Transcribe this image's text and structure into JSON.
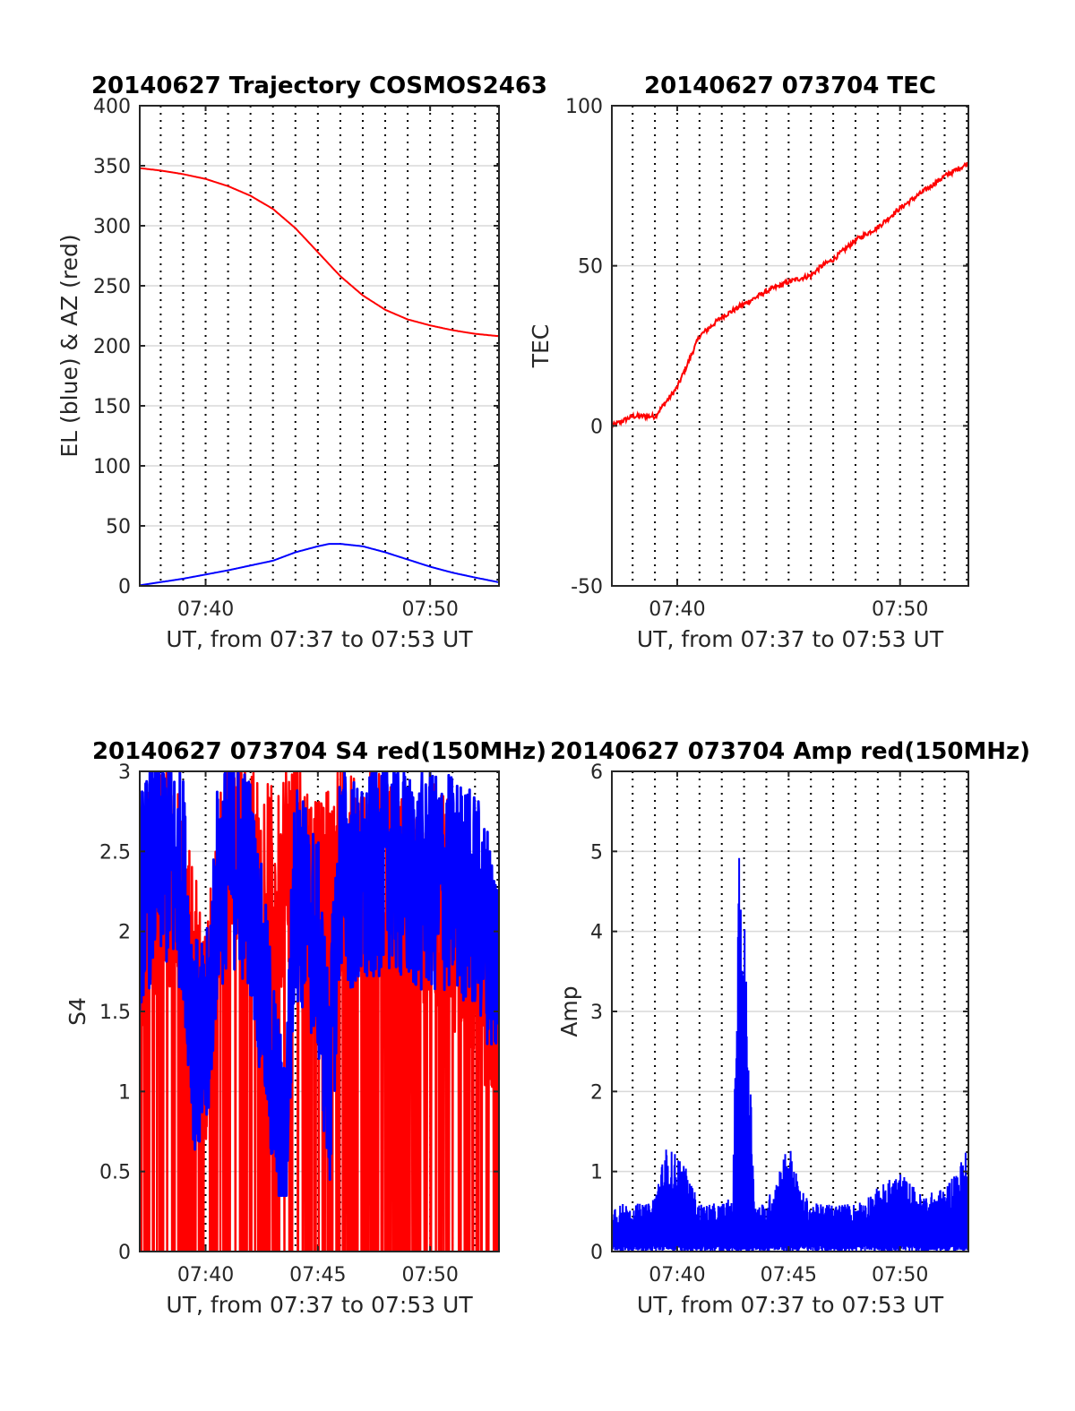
{
  "figure": {
    "background": "#ffffff",
    "colors": {
      "blue": "#0000ff",
      "red": "#ff0000",
      "grid": "#d9d9d9",
      "axis": "#262626"
    }
  },
  "chart_data": [
    {
      "type": "line",
      "title": "20140627 Trajectory COSMOS2463",
      "xlabel": "UT, from 07:37 to 07:53 UT",
      "ylabel": "EL (blue) & AZ (red)",
      "xlim": [
        "07:37:04",
        "07:53:04"
      ],
      "ylim": [
        0,
        400
      ],
      "xticks": [
        "07:40",
        "07:50"
      ],
      "yticks": [
        "0",
        "50",
        "100",
        "150",
        "200",
        "250",
        "300",
        "350",
        "400"
      ],
      "y_grid": true,
      "x_dotted_grid": "every minute",
      "series": [
        {
          "color": "#0000ff",
          "x": [
            "07:37:04",
            "07:39",
            "07:41",
            "07:43",
            "07:44",
            "07:45",
            "07:45:30",
            "07:46",
            "07:47",
            "07:48",
            "07:49",
            "07:50",
            "07:51",
            "07:52",
            "07:53:04"
          ],
          "values": [
            0.5,
            6,
            13,
            21,
            28,
            33,
            35,
            35,
            33,
            28,
            22,
            16,
            11,
            7,
            3
          ]
        },
        {
          "color": "#ff0000",
          "x": [
            "07:37:04",
            "07:38",
            "07:39",
            "07:40",
            "07:41",
            "07:42",
            "07:43",
            "07:44",
            "07:45",
            "07:46",
            "07:47",
            "07:48",
            "07:49",
            "07:50",
            "07:51",
            "07:52",
            "07:53:04"
          ],
          "values": [
            348,
            346,
            343,
            339,
            333,
            325,
            314,
            298,
            278,
            258,
            242,
            230,
            222,
            217,
            213,
            210,
            208
          ]
        }
      ]
    },
    {
      "type": "line",
      "title": "20140627 073704 TEC",
      "xlabel": "UT, from 07:37 to 07:53 UT",
      "ylabel": "TEC",
      "xlim": [
        "07:37:04",
        "07:53:04"
      ],
      "ylim": [
        -50,
        100
      ],
      "xticks": [
        "07:40",
        "07:50"
      ],
      "yticks": [
        "-50",
        "0",
        "50",
        "100"
      ],
      "y_grid": true,
      "x_dotted_grid": "every minute",
      "series": [
        {
          "color": "#ff0000",
          "x": [
            "07:37:04",
            "07:38",
            "07:39",
            "07:40",
            "07:40:30",
            "07:41",
            "07:42",
            "07:43",
            "07:44",
            "07:45",
            "07:46",
            "07:46:30",
            "07:47",
            "07:48",
            "07:49",
            "07:50",
            "07:51",
            "07:52",
            "07:53:04"
          ],
          "values": [
            0,
            3,
            3,
            12,
            20,
            28,
            34,
            38,
            42,
            45,
            47,
            50,
            52,
            58,
            62,
            68,
            73,
            78,
            82
          ]
        }
      ]
    },
    {
      "type": "line",
      "title": "20140627 073704 S4 red(150MHz)",
      "xlabel": "UT, from 07:37 to 07:53 UT",
      "ylabel": "S4",
      "xlim": [
        "07:37:04",
        "07:53:04"
      ],
      "ylim": [
        0,
        3
      ],
      "xticks": [
        "07:40",
        "07:45",
        "07:50"
      ],
      "yticks": [
        "0",
        "0.5",
        "1",
        "1.5",
        "2",
        "2.5",
        "3"
      ],
      "y_grid": true,
      "x_dotted_grid": "every minute",
      "series": [
        {
          "color": "#ff0000",
          "pattern": "dense noise, frequent dropouts to 0",
          "x": [
            "07:37:04",
            "07:38",
            "07:39",
            "07:40",
            "07:41",
            "07:42",
            "07:43",
            "07:44",
            "07:45",
            "07:46",
            "07:47",
            "07:48",
            "07:49",
            "07:50",
            "07:51",
            "07:52",
            "07:53:04"
          ],
          "values": [
            2.0,
            2.4,
            2.2,
            1.3,
            2.7,
            2.4,
            2.2,
            2.6,
            2.1,
            2.4,
            2.3,
            2.5,
            2.0,
            2.3,
            2.1,
            1.8,
            1.6
          ]
        },
        {
          "color": "#0000ff",
          "pattern": "dense noise",
          "x": [
            "07:37:04",
            "07:38",
            "07:39",
            "07:39:30",
            "07:40",
            "07:40:30",
            "07:41",
            "07:42",
            "07:43",
            "07:43:30",
            "07:44",
            "07:45",
            "07:45:30",
            "07:46",
            "07:47",
            "07:48",
            "07:49",
            "07:50",
            "07:51",
            "07:52",
            "07:53:04"
          ],
          "values": [
            2.2,
            2.5,
            2.3,
            1.3,
            1.2,
            2.2,
            2.5,
            2.3,
            1.1,
            0.5,
            2.3,
            1.9,
            1.0,
            2.4,
            2.2,
            2.5,
            2.3,
            2.3,
            2.3,
            2.2,
            1.8
          ]
        }
      ]
    },
    {
      "type": "line",
      "title": "20140627 073704 Amp red(150MHz)",
      "xlabel": "UT, from 07:37 to 07:53 UT",
      "ylabel": "Amp",
      "xlim": [
        "07:37:04",
        "07:53:04"
      ],
      "ylim": [
        0,
        6
      ],
      "xticks": [
        "07:40",
        "07:45",
        "07:50"
      ],
      "yticks": [
        "0",
        "1",
        "2",
        "3",
        "4",
        "5",
        "6"
      ],
      "y_grid": true,
      "x_dotted_grid": "every minute",
      "series": [
        {
          "color": "#0000ff",
          "pattern": "dense noise",
          "x": [
            "07:37:04",
            "07:38",
            "07:38:50",
            "07:39:30",
            "07:40:10",
            "07:41",
            "07:42",
            "07:42:30",
            "07:42:45",
            "07:43",
            "07:43:30",
            "07:44",
            "07:45",
            "07:45:30",
            "07:46",
            "07:47",
            "07:48",
            "07:49",
            "07:50",
            "07:51",
            "07:52",
            "07:53:04"
          ],
          "values": [
            0.6,
            0.6,
            0.6,
            1.3,
            1.2,
            0.6,
            0.6,
            0.7,
            5.0,
            4.3,
            0.6,
            0.6,
            1.4,
            0.8,
            0.6,
            0.6,
            0.6,
            0.8,
            1.0,
            0.7,
            0.8,
            1.3
          ]
        }
      ]
    }
  ]
}
